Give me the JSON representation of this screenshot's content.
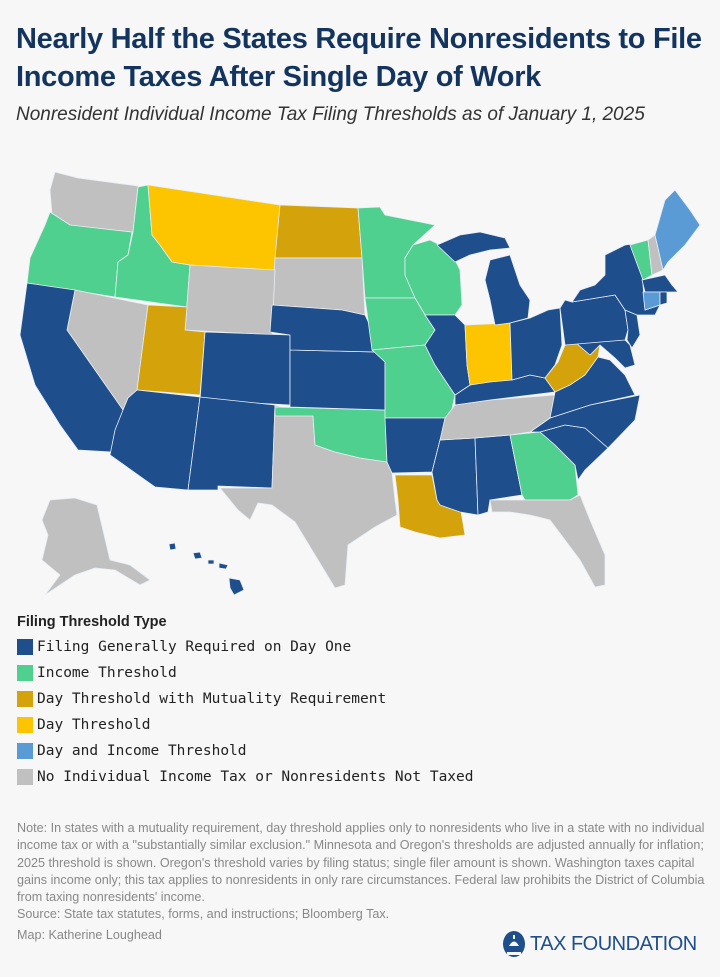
{
  "header": {
    "title": "Nearly Half the States Require Nonresidents to File Income Taxes After Single Day of Work",
    "subtitle": "Nonresident Individual Income Tax Filing Thresholds as of January 1, 2025"
  },
  "legend": {
    "title": "Filing Threshold Type",
    "items": [
      {
        "key": "day_one",
        "label": "Filing Generally Required on Day One",
        "color": "#1f4e8c"
      },
      {
        "key": "income",
        "label": "Income Threshold",
        "color": "#4fd08f"
      },
      {
        "key": "day_mutuality",
        "label": "Day Threshold with Mutuality Requirement",
        "color": "#d4a20a"
      },
      {
        "key": "day",
        "label": "Day Threshold",
        "color": "#fdc500"
      },
      {
        "key": "day_income",
        "label": "Day and Income Threshold",
        "color": "#5b9bd5"
      },
      {
        "key": "none",
        "label": "No Individual Income Tax or Nonresidents Not Taxed",
        "color": "#c0c0c0"
      }
    ]
  },
  "map_data": {
    "WA": "none",
    "OR": "income",
    "ID": "income",
    "MT": "day",
    "ND": "day_mutuality",
    "SD": "none",
    "WY": "none",
    "NV": "none",
    "UT": "day_mutuality",
    "CO": "day_one",
    "CA": "day_one",
    "AZ": "day_one",
    "NM": "day_one",
    "TX": "none",
    "OK": "income",
    "KS": "day_one",
    "NE": "day_one",
    "MN": "income",
    "WI": "income",
    "IA": "income",
    "MO": "income",
    "AR": "day_one",
    "LA": "day_mutuality",
    "MS": "day_one",
    "AL": "day_one",
    "GA": "income",
    "FL": "none",
    "SC": "day_one",
    "NC": "day_one",
    "TN": "none",
    "KY": "day_one",
    "IL": "day_one",
    "IN": "day",
    "MI": "day_one",
    "OH": "day_one",
    "WV": "day_mutuality",
    "VA": "day_one",
    "MD": "day_one",
    "PA": "day_one",
    "NJ": "day_one",
    "NY": "day_one",
    "VT": "income",
    "NH": "none",
    "ME": "day_income",
    "MA": "day_one",
    "CT": "day_income",
    "RI": "day_one",
    "AK": "none",
    "HI": "day_one"
  },
  "footer": {
    "note": "Note: In states with a mutuality requirement, day threshold applies only to nonresidents who live in a state with no individual income tax or with a \"substantially similar exclusion.\" Minnesota and Oregon's thresholds are adjusted annually for inflation; 2025 threshold is shown. Oregon's threshold varies by filing status; single filer amount is shown. Washington taxes capital gains income only; this tax applies to nonresidents in only rare circumstances. Federal law prohibits the District of Columbia from taxing nonresidents' income.",
    "source": "Source: State tax statutes, forms, and instructions; Bloomberg Tax.",
    "credit": "Map: Katherine Loughead",
    "logo_text": "TAX FOUNDATION"
  }
}
